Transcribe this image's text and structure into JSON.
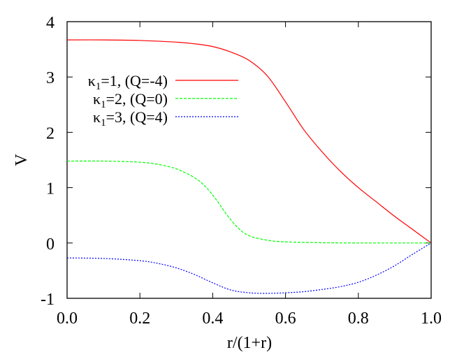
{
  "chart_data": {
    "type": "line",
    "title": "",
    "xlabel": "r/(1+r)",
    "ylabel": "V",
    "xlim": [
      0.0,
      1.0
    ],
    "ylim": [
      -1,
      4
    ],
    "xticks": [
      "0.0",
      "0.2",
      "0.4",
      "0.6",
      "0.8",
      "1.0"
    ],
    "yticks": [
      "-1",
      "0",
      "1",
      "2",
      "3",
      "4"
    ],
    "grid": false,
    "legend_position": "upper-left-inside",
    "series": [
      {
        "name": "κ1=1, (Q=-4)",
        "kappa": "1",
        "q": "-4",
        "color": "#ff0000",
        "dash": "solid",
        "x": [
          0.0,
          0.1,
          0.2,
          0.3,
          0.35,
          0.4,
          0.45,
          0.5,
          0.55,
          0.6,
          0.65,
          0.7,
          0.75,
          0.8,
          0.85,
          0.9,
          0.95,
          1.0
        ],
        "y": [
          3.67,
          3.67,
          3.66,
          3.63,
          3.6,
          3.55,
          3.45,
          3.3,
          3.02,
          2.55,
          2.05,
          1.65,
          1.3,
          1.0,
          0.74,
          0.48,
          0.24,
          0.0
        ]
      },
      {
        "name": "κ1=2, (Q=0)",
        "kappa": "2",
        "q": "0",
        "color": "#00ff00",
        "dash": "dashed",
        "x": [
          0.0,
          0.1,
          0.2,
          0.25,
          0.3,
          0.35,
          0.38,
          0.41,
          0.44,
          0.47,
          0.5,
          0.55,
          0.6,
          0.7,
          0.8,
          0.9,
          1.0
        ],
        "y": [
          1.48,
          1.48,
          1.46,
          1.42,
          1.34,
          1.18,
          1.02,
          0.78,
          0.5,
          0.27,
          0.13,
          0.05,
          0.02,
          0.005,
          0.0,
          0.0,
          0.0
        ]
      },
      {
        "name": "κ1=3, (Q=4)",
        "kappa": "3",
        "q": "4",
        "color": "#0000ff",
        "dash": "dotted",
        "x": [
          0.0,
          0.1,
          0.2,
          0.25,
          0.3,
          0.35,
          0.4,
          0.45,
          0.5,
          0.55,
          0.6,
          0.65,
          0.7,
          0.75,
          0.8,
          0.85,
          0.9,
          0.95,
          1.0
        ],
        "y": [
          -0.27,
          -0.28,
          -0.32,
          -0.37,
          -0.45,
          -0.57,
          -0.72,
          -0.85,
          -0.9,
          -0.91,
          -0.9,
          -0.88,
          -0.84,
          -0.79,
          -0.71,
          -0.58,
          -0.41,
          -0.2,
          0.0
        ]
      }
    ]
  },
  "legend": {
    "entries": [
      {
        "symbol": "κ",
        "sub": "1",
        "rest": "=1, (Q=-4)"
      },
      {
        "symbol": "κ",
        "sub": "1",
        "rest": "=2, (Q=0)"
      },
      {
        "symbol": "κ",
        "sub": "1",
        "rest": "=3, (Q=4)"
      }
    ]
  }
}
